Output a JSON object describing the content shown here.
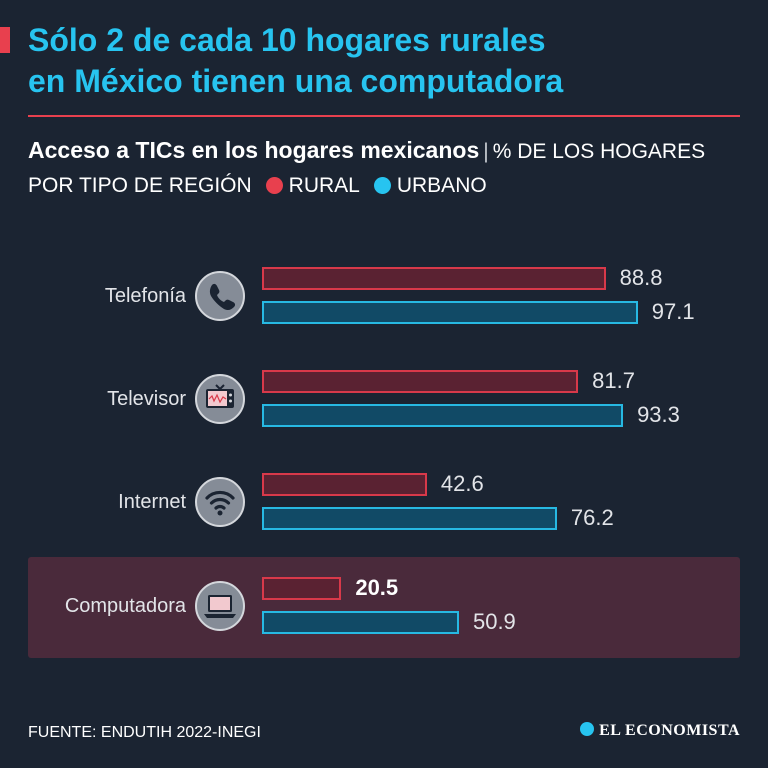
{
  "headline": {
    "line1": "Sólo 2 de cada 10 hogares rurales",
    "line2": "en México tienen una computadora"
  },
  "subtitle": {
    "bold": "Acceso a TICs en los hogares mexicanos",
    "separator": "|",
    "unit": "% DE LOS HOGARES POR TIPO DE REGIÓN"
  },
  "legend": {
    "rural": "RURAL",
    "urban": "URBANO"
  },
  "colors": {
    "rural": "#e8404e",
    "urban": "#27c4f0",
    "highlight": "#4a2a3b"
  },
  "icons": [
    "phone-icon",
    "television-icon",
    "wifi-icon",
    "laptop-icon"
  ],
  "chart_data": {
    "type": "bar",
    "orientation": "horizontal",
    "categories": [
      "Telefonía",
      "Televisor",
      "Internet",
      "Computadora"
    ],
    "series": [
      {
        "name": "RURAL",
        "values": [
          88.8,
          81.7,
          42.6,
          20.5
        ]
      },
      {
        "name": "URBANO",
        "values": [
          97.1,
          93.3,
          76.2,
          50.9
        ]
      }
    ],
    "value_labels": {
      "rural": [
        "88.8",
        "81.7",
        "42.6",
        "20.5"
      ],
      "urban": [
        "97.1",
        "93.3",
        "76.2",
        "50.9"
      ]
    },
    "highlighted_category": "Computadora",
    "xlim": [
      0,
      100
    ],
    "grid": false,
    "legend_position": "top"
  },
  "footer": {
    "source": "FUENTE: ENDUTIH 2022-INEGI",
    "brand": "EL ECONOMISTA"
  }
}
